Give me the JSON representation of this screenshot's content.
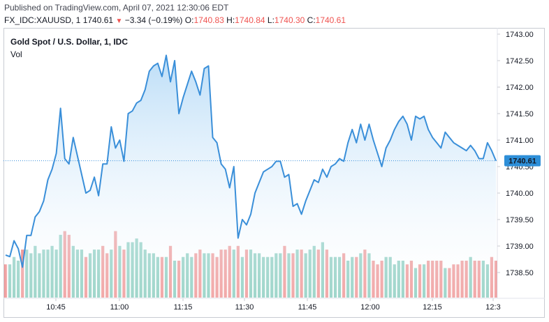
{
  "header": {
    "published": "Published on TradingView.com, April 07, 2021 12:30:06 EDT",
    "symbol": "FX_IDC:XAUUSD, 1",
    "last": "1740.61",
    "change_icon": "down-triangle-icon",
    "change_symbol": "▼",
    "change": "−3.34 (−0.19%)",
    "open_label": "O:",
    "open": "1740.83",
    "high_label": "H:",
    "high": "1740.84",
    "low_label": "L:",
    "low": "1740.30",
    "close_label": "C:",
    "close": "1740.61"
  },
  "legend": {
    "title": "Gold Spot / U.S. Dollar, 1, IDC",
    "volume": "Vol"
  },
  "colors": {
    "line": "#3a8fd9",
    "area_top": "#b9dcf7",
    "area_bottom": "#ffffff",
    "vol_up": "#8fcfc2",
    "vol_down": "#ef9a9a",
    "last_price_bg": "#2e8fd8",
    "down": "#ef5350"
  },
  "chart_data": {
    "type": "area",
    "title": "Gold Spot / U.S. Dollar, 1, IDC",
    "x_labels": [
      "10:45",
      "11:00",
      "11:15",
      "11:30",
      "11:45",
      "12:00",
      "12:15",
      "12:3"
    ],
    "y_ticks": [
      "1743.00",
      "1742.50",
      "1742.00",
      "1741.50",
      "1741.00",
      "1740.50",
      "1740.00",
      "1739.50",
      "1739.00",
      "1738.50"
    ],
    "ylim": [
      1738.25,
      1743.05
    ],
    "last_price": 1740.61,
    "last_price_label": "1740.61",
    "series": [
      {
        "values": [
          1738.83,
          1738.8,
          1739.1,
          1738.95,
          1738.6,
          1739.2,
          1739.2,
          1739.55,
          1739.65,
          1739.85,
          1740.25,
          1740.45,
          1740.75,
          1741.6,
          1740.65,
          1740.55,
          1741.05,
          1740.7,
          1740.35,
          1740.0,
          1740.05,
          1740.3,
          1739.95,
          1740.55,
          1740.55,
          1741.25,
          1740.85,
          1741.0,
          1740.6,
          1741.5,
          1741.55,
          1741.7,
          1741.75,
          1741.95,
          1742.3,
          1742.4,
          1742.45,
          1742.2,
          1742.6,
          1742.1,
          1742.5,
          1741.5,
          1741.8,
          1742.05,
          1742.3,
          1742.1,
          1741.85,
          1742.35,
          1742.4,
          1741.05,
          1740.95,
          1740.55,
          1740.45,
          1740.1,
          1740.5,
          1739.15,
          1739.5,
          1739.4,
          1739.6,
          1740.0,
          1740.2,
          1740.4,
          1740.45,
          1740.5,
          1740.6,
          1740.6,
          1740.3,
          1740.35,
          1739.75,
          1739.8,
          1739.6,
          1739.85,
          1740.05,
          1740.25,
          1740.2,
          1740.45,
          1740.3,
          1740.5,
          1740.55,
          1740.65,
          1740.6,
          1740.95,
          1741.2,
          1740.95,
          1741.3,
          1741.0,
          1741.3,
          1741.0,
          1740.75,
          1740.5,
          1740.85,
          1741.0,
          1741.2,
          1741.35,
          1741.45,
          1741.3,
          1741.0,
          1741.45,
          1741.4,
          1741.45,
          1741.2,
          1741.05,
          1740.95,
          1740.85,
          1741.15,
          1741.05,
          1740.95,
          1740.9,
          1740.85,
          1740.8,
          1740.9,
          1740.8,
          1740.65,
          1740.65,
          1740.95,
          1740.8,
          1740.61
        ]
      },
      {
        "name": "Vol",
        "type": "bar",
        "values": [
          9,
          9,
          11,
          10,
          13,
          13,
          12,
          14,
          12,
          13,
          13,
          14,
          13,
          17,
          18,
          17,
          14,
          13,
          13,
          11,
          12,
          13,
          13,
          14,
          12,
          13,
          18,
          14,
          13,
          15,
          15,
          16,
          15,
          13,
          12,
          12,
          11,
          11,
          11,
          14,
          10,
          10,
          11,
          12,
          11,
          12,
          13,
          12,
          12,
          12,
          11,
          13,
          13,
          14,
          13,
          14,
          11,
          13,
          13,
          12,
          12,
          11,
          11,
          11,
          12,
          12,
          14,
          12,
          12,
          13,
          13,
          12,
          13,
          14,
          13,
          15,
          13,
          11,
          11,
          11,
          12,
          10,
          11,
          11,
          12,
          13,
          12,
          10,
          9,
          10,
          11,
          11,
          9,
          10,
          10,
          9,
          10,
          8,
          9,
          9,
          10,
          10,
          10,
          10,
          8,
          8,
          9,
          9,
          10,
          10,
          11,
          10,
          10,
          10,
          9,
          11,
          10
        ],
        "directions": [
          "d",
          "u",
          "u",
          "u",
          "d",
          "u",
          "u",
          "u",
          "u",
          "u",
          "u",
          "u",
          "u",
          "u",
          "d",
          "d",
          "u",
          "u",
          "u",
          "d",
          "u",
          "u",
          "u",
          "d",
          "d",
          "u",
          "d",
          "u",
          "d",
          "u",
          "u",
          "u",
          "u",
          "u",
          "u",
          "u",
          "u",
          "d",
          "u",
          "d",
          "u",
          "d",
          "u",
          "u",
          "u",
          "d",
          "d",
          "u",
          "u",
          "d",
          "d",
          "d",
          "d",
          "d",
          "u",
          "d",
          "u",
          "d",
          "u",
          "u",
          "u",
          "u",
          "u",
          "u",
          "u",
          "u",
          "d",
          "u",
          "d",
          "u",
          "d",
          "u",
          "u",
          "u",
          "d",
          "u",
          "d",
          "u",
          "u",
          "u",
          "d",
          "u",
          "u",
          "d",
          "u",
          "d",
          "u",
          "d",
          "d",
          "d",
          "u",
          "u",
          "u",
          "u",
          "u",
          "d",
          "d",
          "u",
          "d",
          "u",
          "d",
          "d",
          "d",
          "d",
          "u",
          "d",
          "d",
          "d",
          "d",
          "d",
          "u",
          "d",
          "d",
          "u",
          "u",
          "d",
          "d"
        ]
      }
    ]
  }
}
